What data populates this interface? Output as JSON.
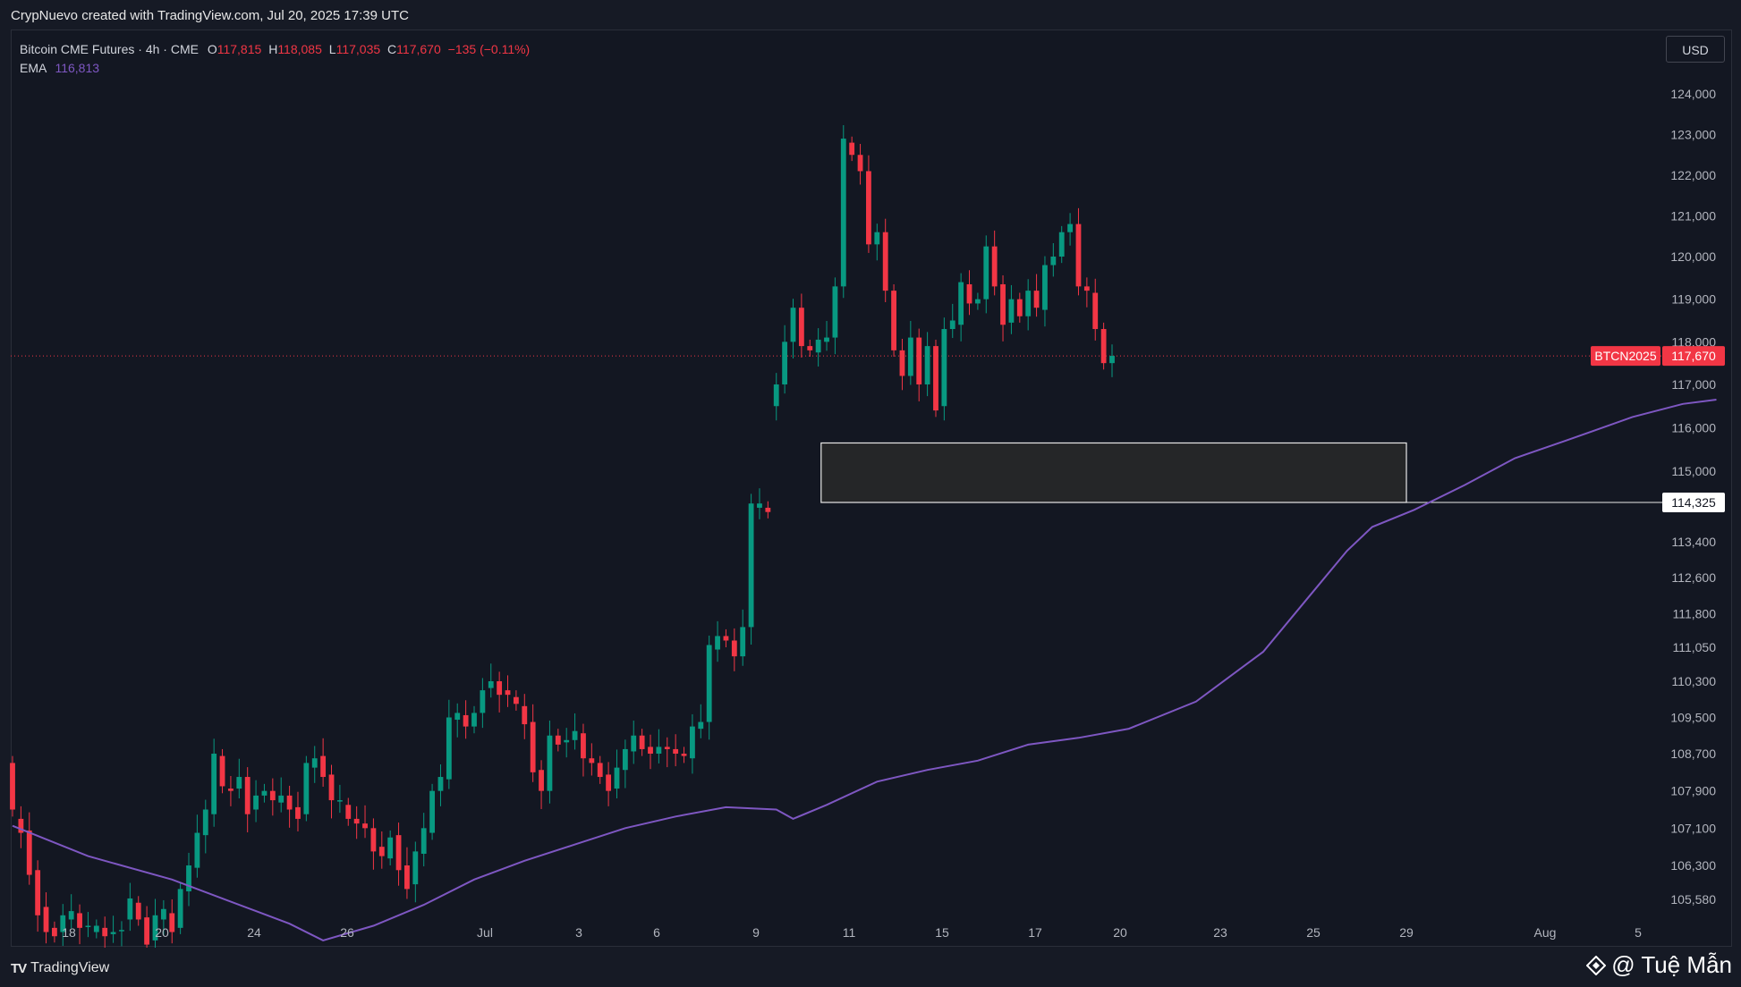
{
  "caption": "CrypNuevo created with TradingView.com, Jul 20, 2025 17:39 UTC",
  "legend": {
    "symbol": "Bitcoin CME Futures · 4h · CME",
    "o_label": "O",
    "o_value": "117,815",
    "h_label": "H",
    "h_value": "118,085",
    "l_label": "L",
    "l_value": "117,035",
    "c_label": "C",
    "c_value": "117,670",
    "change": "−135 (−0.11%)",
    "ema_label": "EMA",
    "ema_value": "116,813"
  },
  "currency_button": "USD",
  "footer": {
    "brand": "TradingView",
    "watermark": "@ Tuệ Mẫn"
  },
  "colors": {
    "up": "#089981",
    "down": "#f23645",
    "ema": "#7e57c2",
    "background": "#131722"
  },
  "chart_data": {
    "type": "candlestick",
    "symbol_tag": "BTCN2025",
    "last_price": 117670,
    "last_price_label": "117,670",
    "level_price": 114325,
    "level_label": "114,325",
    "zone": {
      "price_from": 114325,
      "price_to": 115650,
      "date_from": "Jul 10",
      "date_to": "Jul 29"
    },
    "y_ticks": [
      {
        "v": 124000,
        "label": "124,000"
      },
      {
        "v": 123000,
        "label": "123,000"
      },
      {
        "v": 122000,
        "label": "122,000"
      },
      {
        "v": 121000,
        "label": "121,000"
      },
      {
        "v": 120000,
        "label": "120,000"
      },
      {
        "v": 119000,
        "label": "119,000"
      },
      {
        "v": 118000,
        "label": "118,000"
      },
      {
        "v": 117000,
        "label": "117,000"
      },
      {
        "v": 116000,
        "label": "116,000"
      },
      {
        "v": 115000,
        "label": "115,000"
      },
      {
        "v": 113400,
        "label": "113,400"
      },
      {
        "v": 112600,
        "label": "112,600"
      },
      {
        "v": 111800,
        "label": "111,800"
      },
      {
        "v": 111050,
        "label": "111,050"
      },
      {
        "v": 110300,
        "label": "110,300"
      },
      {
        "v": 109500,
        "label": "109,500"
      },
      {
        "v": 108700,
        "label": "108,700"
      },
      {
        "v": 107900,
        "label": "107,900"
      },
      {
        "v": 107100,
        "label": "107,100"
      },
      {
        "v": 106300,
        "label": "106,300"
      },
      {
        "v": 105580,
        "label": "105,580"
      }
    ],
    "x_ticks": [
      {
        "label": "18",
        "day": 18
      },
      {
        "label": "20",
        "day": 20
      },
      {
        "label": "24",
        "day": 24
      },
      {
        "label": "26",
        "day": 26
      },
      {
        "label": "Jul",
        "day": 31
      },
      {
        "label": "3",
        "day": 33
      },
      {
        "label": "6",
        "day": 36
      },
      {
        "label": "9",
        "day": 39
      },
      {
        "label": "11",
        "day": 41
      },
      {
        "label": "15",
        "day": 45
      },
      {
        "label": "17",
        "day": 47
      },
      {
        "label": "20",
        "day": 50
      },
      {
        "label": "23",
        "day": 53
      },
      {
        "label": "25",
        "day": 55
      },
      {
        "label": "29",
        "day": 59
      },
      {
        "label": "Aug",
        "day": 62
      },
      {
        "label": "5",
        "day": 67
      }
    ],
    "candles_4h": [
      [
        108500,
        107500
      ],
      [
        107300,
        107000
      ],
      [
        107050,
        106100
      ],
      [
        106200,
        105200
      ],
      [
        105400,
        104800
      ],
      [
        104900,
        104700
      ],
      [
        104800,
        105200
      ],
      [
        105100,
        105300
      ],
      [
        105250,
        104900
      ],
      [
        104950,
        104950
      ],
      [
        104800,
        104950
      ],
      [
        104900,
        104700
      ],
      [
        104750,
        104800
      ],
      [
        104850,
        104850
      ],
      [
        105100,
        105600
      ],
      [
        105500,
        105100
      ],
      [
        105150,
        104500
      ],
      [
        104600,
        105200
      ],
      [
        105100,
        105350
      ],
      [
        105250,
        104800
      ],
      [
        104900,
        105800
      ],
      [
        105750,
        106300
      ],
      [
        106250,
        107000
      ],
      [
        106950,
        107500
      ],
      [
        107400,
        108700
      ],
      [
        108650,
        108000
      ],
      [
        107950,
        107900
      ],
      [
        107950,
        108200
      ],
      [
        108200,
        107400
      ],
      [
        107500,
        107800
      ],
      [
        107800,
        107900
      ],
      [
        107900,
        107700
      ],
      [
        107650,
        107800
      ],
      [
        107800,
        107500
      ],
      [
        107550,
        107300
      ],
      [
        107400,
        108500
      ],
      [
        108400,
        108600
      ],
      [
        108650,
        108200
      ],
      [
        108250,
        107700
      ],
      [
        107700,
        107700
      ],
      [
        107600,
        107300
      ],
      [
        107300,
        107200
      ],
      [
        107200,
        107100
      ],
      [
        107100,
        106600
      ],
      [
        106700,
        106500
      ],
      [
        106450,
        106900
      ],
      [
        106950,
        106200
      ],
      [
        106300,
        105800
      ],
      [
        105900,
        106600
      ],
      [
        106550,
        107100
      ],
      [
        107000,
        107900
      ],
      [
        107900,
        108200
      ],
      [
        108150,
        109500
      ],
      [
        109450,
        109600
      ],
      [
        109550,
        109300
      ],
      [
        109300,
        109600
      ],
      [
        109600,
        110100
      ],
      [
        110150,
        110300
      ],
      [
        110300,
        110000
      ],
      [
        110100,
        110000
      ],
      [
        109950,
        109800
      ],
      [
        109750,
        109350
      ],
      [
        109400,
        108300
      ],
      [
        108350,
        107900
      ],
      [
        107900,
        109100
      ],
      [
        109100,
        108900
      ],
      [
        108950,
        109000
      ],
      [
        109000,
        109200
      ],
      [
        109150,
        108600
      ],
      [
        108600,
        108500
      ],
      [
        108500,
        108200
      ],
      [
        108250,
        107900
      ],
      [
        107950,
        108400
      ],
      [
        108350,
        108800
      ],
      [
        108750,
        109100
      ],
      [
        109100,
        108800
      ],
      [
        108850,
        108700
      ],
      [
        108700,
        108850
      ],
      [
        108850,
        108800
      ],
      [
        108800,
        108700
      ],
      [
        108700,
        108650
      ],
      [
        108600,
        109300
      ],
      [
        109250,
        109400
      ],
      [
        109400,
        111100
      ],
      [
        111000,
        111300
      ],
      [
        111300,
        111200
      ],
      [
        111200,
        110850
      ],
      [
        110850,
        111500
      ],
      [
        111500,
        114300
      ],
      [
        114200,
        114300
      ],
      [
        114200,
        114100
      ],
      [
        116500,
        117000
      ],
      [
        117000,
        118000
      ],
      [
        118000,
        118800
      ],
      [
        118800,
        117900
      ],
      [
        117900,
        117800
      ],
      [
        117750,
        118050
      ],
      [
        118000,
        118100
      ],
      [
        118100,
        119300
      ],
      [
        119300,
        122900
      ],
      [
        122800,
        122500
      ],
      [
        122500,
        122100
      ],
      [
        122100,
        120300
      ],
      [
        120300,
        120600
      ],
      [
        120600,
        119200
      ],
      [
        119200,
        117800
      ],
      [
        117800,
        117200
      ],
      [
        117200,
        118100
      ],
      [
        118100,
        117000
      ],
      [
        117000,
        117900
      ],
      [
        117900,
        116400
      ],
      [
        116500,
        118300
      ],
      [
        118300,
        118500
      ],
      [
        118400,
        119400
      ],
      [
        119350,
        118900
      ],
      [
        118900,
        119000
      ],
      [
        119000,
        120250
      ],
      [
        120250,
        119300
      ],
      [
        119350,
        118400
      ],
      [
        118450,
        119000
      ],
      [
        119000,
        118600
      ],
      [
        118600,
        119200
      ],
      [
        119200,
        118800
      ],
      [
        118750,
        119800
      ],
      [
        119800,
        120000
      ],
      [
        120000,
        120600
      ],
      [
        120600,
        120800
      ],
      [
        120800,
        119300
      ],
      [
        119300,
        119200
      ],
      [
        119150,
        118300
      ],
      [
        118300,
        117500
      ],
      [
        117500,
        117670
      ]
    ],
    "ema_path": [
      [
        107150,
        1
      ],
      [
        106500,
        10
      ],
      [
        106000,
        20
      ],
      [
        105300,
        30
      ],
      [
        105000,
        34
      ],
      [
        104600,
        38
      ],
      [
        104950,
        44
      ],
      [
        105450,
        50
      ],
      [
        106000,
        56
      ],
      [
        106400,
        62
      ],
      [
        106750,
        68
      ],
      [
        107100,
        74
      ],
      [
        107350,
        80
      ],
      [
        107550,
        86
      ],
      [
        107500,
        92
      ],
      [
        107300,
        94
      ],
      [
        107600,
        98
      ],
      [
        108100,
        104
      ],
      [
        108350,
        110
      ],
      [
        108550,
        116
      ],
      [
        108900,
        122
      ],
      [
        109050,
        128
      ],
      [
        109250,
        134
      ],
      [
        109850,
        142
      ],
      [
        110950,
        150
      ],
      [
        112300,
        156
      ],
      [
        113200,
        160
      ],
      [
        113750,
        163
      ],
      [
        114150,
        168
      ],
      [
        114700,
        174
      ],
      [
        115300,
        180
      ],
      [
        115700,
        186
      ],
      [
        116250,
        194
      ],
      [
        116550,
        200
      ],
      [
        116650,
        204
      ]
    ]
  }
}
